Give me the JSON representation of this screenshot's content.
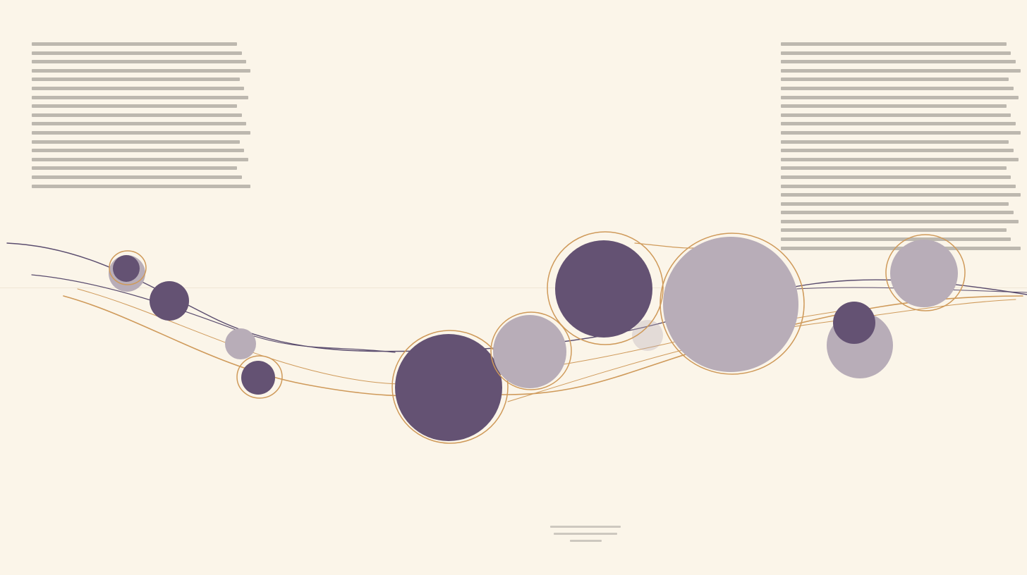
{
  "colors": {
    "background": "#fbf5e9",
    "dark_circle": "#645273",
    "light_circle": "#b8adb8",
    "gold_line": "#cf9a5a",
    "dark_line": "#5a4c6e",
    "text_gray": "#8a8580"
  },
  "text_blocks": {
    "left": {
      "legible": false,
      "lines": 17
    },
    "right": {
      "legible": false,
      "lines": 24
    },
    "caption": {
      "legible": false,
      "lines": 3
    }
  }
}
